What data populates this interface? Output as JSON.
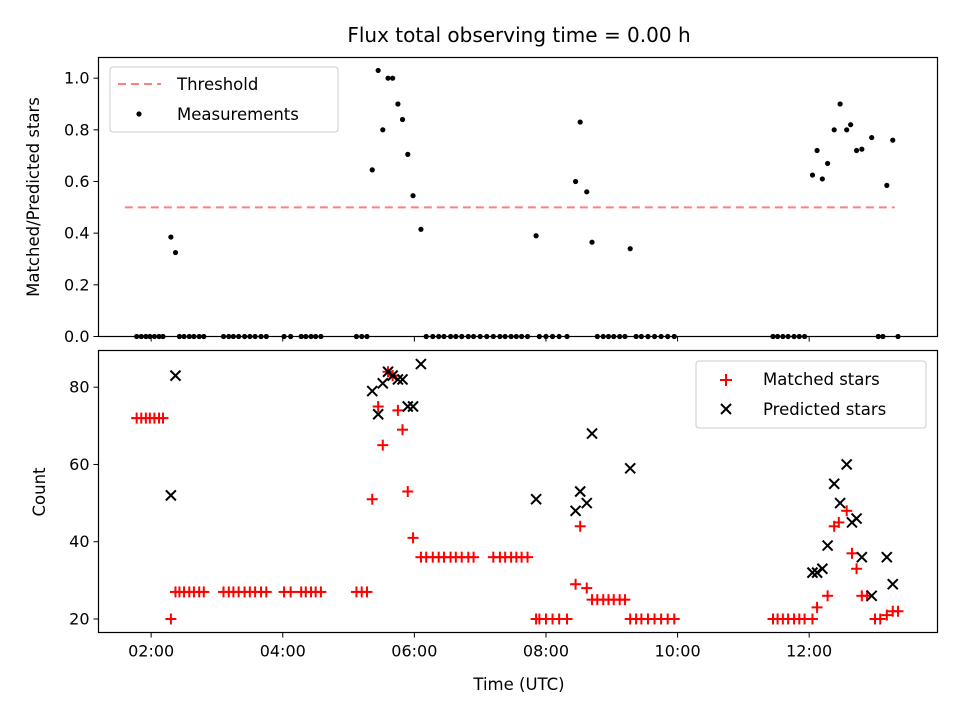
{
  "chart_data": [
    {
      "type": "scatter",
      "title": "Flux total observing time = 0.00 h",
      "xlabel": "",
      "ylabel": "Matched/Predicted stars",
      "ylim": [
        0,
        1.08
      ],
      "yticks": [
        0.0,
        0.2,
        0.4,
        0.6,
        0.8,
        1.0
      ],
      "ytick_labels": [
        "0.0",
        "0.2",
        "0.4",
        "0.6",
        "0.8",
        "1.0"
      ],
      "xlim": [
        1.2,
        13.95
      ],
      "xticks": [
        2,
        4,
        6,
        8,
        10,
        12
      ],
      "xtick_labels": [
        "",
        "",
        "",
        "",
        "",
        ""
      ],
      "legend_position": "top-left",
      "threshold": {
        "name": "Threshold",
        "x": [
          1.6,
          13.3
        ],
        "y": 0.5,
        "color": "#ff7f7f"
      },
      "series": [
        {
          "name": "Measurements",
          "color": "#000000",
          "points": [
            [
              1.78,
              0
            ],
            [
              1.85,
              0
            ],
            [
              1.92,
              0
            ],
            [
              1.98,
              0
            ],
            [
              2.05,
              0
            ],
            [
              2.12,
              0
            ],
            [
              2.18,
              0
            ],
            [
              2.3,
              0.385
            ],
            [
              2.37,
              0.325
            ],
            [
              2.43,
              0
            ],
            [
              2.5,
              0
            ],
            [
              2.58,
              0
            ],
            [
              2.65,
              0
            ],
            [
              2.73,
              0
            ],
            [
              2.8,
              0
            ],
            [
              3.1,
              0
            ],
            [
              3.18,
              0
            ],
            [
              3.25,
              0
            ],
            [
              3.33,
              0
            ],
            [
              3.42,
              0
            ],
            [
              3.5,
              0
            ],
            [
              3.58,
              0
            ],
            [
              3.67,
              0
            ],
            [
              3.75,
              0
            ],
            [
              4.02,
              0
            ],
            [
              4.12,
              0
            ],
            [
              4.28,
              0
            ],
            [
              4.35,
              0
            ],
            [
              4.43,
              0
            ],
            [
              4.5,
              0
            ],
            [
              4.58,
              0
            ],
            [
              5.12,
              0
            ],
            [
              5.2,
              0
            ],
            [
              5.28,
              0
            ],
            [
              5.36,
              0.645
            ],
            [
              5.45,
              1.03
            ],
            [
              5.52,
              0.8
            ],
            [
              5.6,
              1.0
            ],
            [
              5.67,
              1.0
            ],
            [
              5.75,
              0.9
            ],
            [
              5.82,
              0.84
            ],
            [
              5.9,
              0.705
            ],
            [
              5.98,
              0.545
            ],
            [
              6.1,
              0.415
            ],
            [
              6.18,
              0
            ],
            [
              6.28,
              0
            ],
            [
              6.37,
              0
            ],
            [
              6.45,
              0
            ],
            [
              6.55,
              0
            ],
            [
              6.63,
              0
            ],
            [
              6.72,
              0
            ],
            [
              6.82,
              0
            ],
            [
              6.9,
              0
            ],
            [
              7.0,
              0
            ],
            [
              7.1,
              0
            ],
            [
              7.2,
              0
            ],
            [
              7.3,
              0
            ],
            [
              7.38,
              0
            ],
            [
              7.47,
              0
            ],
            [
              7.55,
              0
            ],
            [
              7.63,
              0
            ],
            [
              7.72,
              0
            ],
            [
              7.85,
              0.39
            ],
            [
              7.9,
              0
            ],
            [
              8.0,
              0
            ],
            [
              8.1,
              0
            ],
            [
              8.2,
              0
            ],
            [
              8.32,
              0
            ],
            [
              8.45,
              0.6
            ],
            [
              8.52,
              0.83
            ],
            [
              8.62,
              0.56
            ],
            [
              8.7,
              0.365
            ],
            [
              8.78,
              0
            ],
            [
              8.87,
              0
            ],
            [
              8.95,
              0
            ],
            [
              9.03,
              0
            ],
            [
              9.12,
              0
            ],
            [
              9.2,
              0
            ],
            [
              9.28,
              0.34
            ],
            [
              9.37,
              0
            ],
            [
              9.45,
              0
            ],
            [
              9.55,
              0
            ],
            [
              9.65,
              0
            ],
            [
              9.75,
              0
            ],
            [
              9.85,
              0
            ],
            [
              9.95,
              0
            ],
            [
              11.45,
              0
            ],
            [
              11.52,
              0
            ],
            [
              11.6,
              0
            ],
            [
              11.68,
              0
            ],
            [
              11.77,
              0
            ],
            [
              11.85,
              0
            ],
            [
              11.93,
              0
            ],
            [
              12.05,
              0.625
            ],
            [
              12.12,
              0.72
            ],
            [
              12.2,
              0.61
            ],
            [
              12.28,
              0.67
            ],
            [
              12.38,
              0.8
            ],
            [
              12.47,
              0.9
            ],
            [
              12.57,
              0.8
            ],
            [
              12.63,
              0.82
            ],
            [
              12.72,
              0.72
            ],
            [
              12.8,
              0.725
            ],
            [
              12.95,
              0.77
            ],
            [
              13.05,
              0
            ],
            [
              13.12,
              0
            ],
            [
              13.18,
              0.585
            ],
            [
              13.27,
              0.76
            ],
            [
              13.35,
              0
            ]
          ]
        }
      ]
    },
    {
      "type": "scatter",
      "title": "",
      "xlabel": "Time (UTC)",
      "ylabel": "Count",
      "ylim": [
        16.5,
        89.5
      ],
      "yticks": [
        20,
        40,
        60,
        80
      ],
      "ytick_labels": [
        "20",
        "40",
        "60",
        "80"
      ],
      "xlim": [
        1.2,
        13.95
      ],
      "xticks": [
        2,
        4,
        6,
        8,
        10,
        12
      ],
      "xtick_labels": [
        "02:00",
        "04:00",
        "06:00",
        "08:00",
        "10:00",
        "12:00"
      ],
      "legend_position": "top-right",
      "series": [
        {
          "name": "Matched stars",
          "marker": "plus",
          "color": "#ff0000",
          "points": [
            [
              1.78,
              72
            ],
            [
              1.85,
              72
            ],
            [
              1.92,
              72
            ],
            [
              1.98,
              72
            ],
            [
              2.05,
              72
            ],
            [
              2.12,
              72
            ],
            [
              2.18,
              72
            ],
            [
              2.3,
              20
            ],
            [
              2.37,
              27
            ],
            [
              2.43,
              27
            ],
            [
              2.5,
              27
            ],
            [
              2.58,
              27
            ],
            [
              2.65,
              27
            ],
            [
              2.73,
              27
            ],
            [
              2.8,
              27
            ],
            [
              3.1,
              27
            ],
            [
              3.18,
              27
            ],
            [
              3.25,
              27
            ],
            [
              3.33,
              27
            ],
            [
              3.42,
              27
            ],
            [
              3.5,
              27
            ],
            [
              3.58,
              27
            ],
            [
              3.67,
              27
            ],
            [
              3.75,
              27
            ],
            [
              4.02,
              27
            ],
            [
              4.12,
              27
            ],
            [
              4.28,
              27
            ],
            [
              4.35,
              27
            ],
            [
              4.43,
              27
            ],
            [
              4.5,
              27
            ],
            [
              4.58,
              27
            ],
            [
              5.12,
              27
            ],
            [
              5.2,
              27
            ],
            [
              5.28,
              27
            ],
            [
              5.36,
              51
            ],
            [
              5.45,
              75
            ],
            [
              5.52,
              65
            ],
            [
              5.6,
              84
            ],
            [
              5.67,
              83
            ],
            [
              5.75,
              74
            ],
            [
              5.82,
              69
            ],
            [
              5.9,
              53
            ],
            [
              5.98,
              41
            ],
            [
              6.1,
              36
            ],
            [
              6.18,
              36
            ],
            [
              6.28,
              36
            ],
            [
              6.37,
              36
            ],
            [
              6.45,
              36
            ],
            [
              6.55,
              36
            ],
            [
              6.63,
              36
            ],
            [
              6.72,
              36
            ],
            [
              6.82,
              36
            ],
            [
              6.9,
              36
            ],
            [
              7.2,
              36
            ],
            [
              7.3,
              36
            ],
            [
              7.38,
              36
            ],
            [
              7.47,
              36
            ],
            [
              7.55,
              36
            ],
            [
              7.63,
              36
            ],
            [
              7.72,
              36
            ],
            [
              7.85,
              20
            ],
            [
              7.9,
              20
            ],
            [
              8.0,
              20
            ],
            [
              8.1,
              20
            ],
            [
              8.2,
              20
            ],
            [
              8.32,
              20
            ],
            [
              8.45,
              29
            ],
            [
              8.52,
              44
            ],
            [
              8.62,
              28
            ],
            [
              8.7,
              25
            ],
            [
              8.78,
              25
            ],
            [
              8.87,
              25
            ],
            [
              8.95,
              25
            ],
            [
              9.03,
              25
            ],
            [
              9.12,
              25
            ],
            [
              9.2,
              25
            ],
            [
              9.28,
              20
            ],
            [
              9.37,
              20
            ],
            [
              9.45,
              20
            ],
            [
              9.55,
              20
            ],
            [
              9.65,
              20
            ],
            [
              9.75,
              20
            ],
            [
              9.85,
              20
            ],
            [
              9.95,
              20
            ],
            [
              11.45,
              20
            ],
            [
              11.52,
              20
            ],
            [
              11.6,
              20
            ],
            [
              11.68,
              20
            ],
            [
              11.77,
              20
            ],
            [
              11.85,
              20
            ],
            [
              11.93,
              20
            ],
            [
              12.05,
              20
            ],
            [
              12.12,
              23
            ],
            [
              12.28,
              26
            ],
            [
              12.38,
              44
            ],
            [
              12.45,
              45
            ],
            [
              12.57,
              48
            ],
            [
              12.65,
              37
            ],
            [
              12.72,
              33
            ],
            [
              12.8,
              26
            ],
            [
              12.88,
              26
            ],
            [
              13.0,
              20
            ],
            [
              13.08,
              20
            ],
            [
              13.18,
              21
            ],
            [
              13.27,
              22
            ],
            [
              13.35,
              22
            ]
          ]
        },
        {
          "name": "Predicted stars",
          "marker": "x",
          "color": "#000000",
          "points": [
            [
              2.3,
              52
            ],
            [
              2.37,
              83
            ],
            [
              5.36,
              79
            ],
            [
              5.45,
              73
            ],
            [
              5.52,
              81
            ],
            [
              5.6,
              84
            ],
            [
              5.67,
              83
            ],
            [
              5.75,
              82
            ],
            [
              5.82,
              82
            ],
            [
              5.9,
              75
            ],
            [
              5.98,
              75
            ],
            [
              6.1,
              86
            ],
            [
              7.85,
              51
            ],
            [
              8.45,
              48
            ],
            [
              8.52,
              53
            ],
            [
              8.62,
              50
            ],
            [
              8.7,
              68
            ],
            [
              9.28,
              59
            ],
            [
              12.05,
              32
            ],
            [
              12.12,
              32
            ],
            [
              12.2,
              33
            ],
            [
              12.28,
              39
            ],
            [
              12.38,
              55
            ],
            [
              12.47,
              50
            ],
            [
              12.57,
              60
            ],
            [
              12.65,
              45
            ],
            [
              12.72,
              46
            ],
            [
              12.8,
              36
            ],
            [
              12.95,
              26
            ],
            [
              13.18,
              36
            ],
            [
              13.27,
              29
            ]
          ]
        }
      ]
    }
  ]
}
